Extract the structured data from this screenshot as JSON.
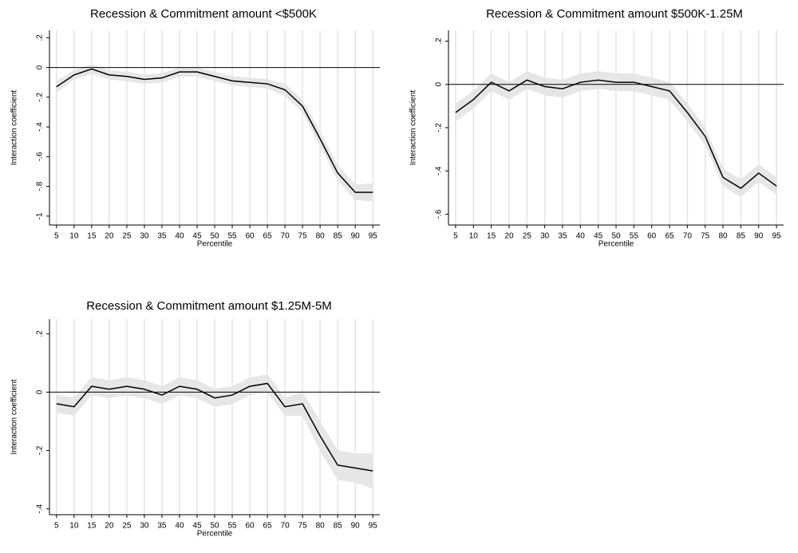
{
  "chart_data": [
    {
      "type": "line",
      "title": "Recession & Commitment amount <$500K",
      "x_label": "Percentile",
      "y_label": "Interaction coefficient",
      "x": [
        5,
        10,
        15,
        20,
        25,
        30,
        35,
        40,
        45,
        50,
        55,
        60,
        65,
        70,
        75,
        80,
        85,
        90,
        95
      ],
      "values": [
        -0.13,
        -0.05,
        -0.01,
        -0.05,
        -0.06,
        -0.08,
        -0.07,
        -0.03,
        -0.03,
        -0.06,
        -0.09,
        -0.1,
        -0.11,
        -0.15,
        -0.26,
        -0.48,
        -0.71,
        -0.84,
        -0.84
      ],
      "lower": [
        -0.17,
        -0.08,
        -0.04,
        -0.08,
        -0.09,
        -0.11,
        -0.1,
        -0.06,
        -0.06,
        -0.09,
        -0.12,
        -0.13,
        -0.14,
        -0.19,
        -0.3,
        -0.53,
        -0.76,
        -0.89,
        -0.9
      ],
      "upper": [
        -0.09,
        -0.02,
        0.02,
        -0.02,
        -0.03,
        -0.05,
        -0.04,
        0.0,
        0.0,
        -0.03,
        -0.06,
        -0.07,
        -0.08,
        -0.11,
        -0.22,
        -0.43,
        -0.66,
        -0.79,
        -0.78
      ],
      "color": "#000000",
      "band_color": "#e6e6e6",
      "reference_line": 0,
      "xlim": [
        3,
        97
      ],
      "xticks": [
        5,
        10,
        15,
        20,
        25,
        30,
        35,
        40,
        45,
        50,
        55,
        60,
        65,
        70,
        75,
        80,
        85,
        90,
        95
      ],
      "ylim": [
        -1.06,
        0.25
      ],
      "yticks": [
        {
          "value": 0.2,
          "label": ".2"
        },
        0,
        {
          "value": -0.2,
          "label": "-.2"
        },
        {
          "value": -0.4,
          "label": "-.4"
        },
        {
          "value": -0.6,
          "label": "-.6"
        },
        {
          "value": -0.8,
          "label": "-.8"
        },
        -1
      ],
      "grid": true
    },
    {
      "type": "line",
      "title": "Recession & Commitment amount $500K-1.25M",
      "x_label": "Percentile",
      "y_label": "Interaction coefficient",
      "x": [
        5,
        10,
        15,
        20,
        25,
        30,
        35,
        40,
        45,
        50,
        55,
        60,
        65,
        70,
        75,
        80,
        85,
        90,
        95
      ],
      "values": [
        -0.13,
        -0.07,
        0.01,
        -0.03,
        0.02,
        -0.01,
        -0.02,
        0.01,
        0.02,
        0.01,
        0.01,
        -0.01,
        -0.03,
        -0.13,
        -0.24,
        -0.43,
        -0.48,
        -0.41,
        -0.47
      ],
      "lower": [
        -0.17,
        -0.11,
        -0.03,
        -0.07,
        -0.02,
        -0.05,
        -0.06,
        -0.03,
        -0.02,
        -0.03,
        -0.03,
        -0.05,
        -0.07,
        -0.17,
        -0.28,
        -0.47,
        -0.52,
        -0.45,
        -0.51
      ],
      "upper": [
        -0.09,
        -0.03,
        0.05,
        0.01,
        0.06,
        0.03,
        0.02,
        0.05,
        0.06,
        0.05,
        0.05,
        0.03,
        0.01,
        -0.09,
        -0.2,
        -0.39,
        -0.44,
        -0.37,
        -0.43
      ],
      "color": "#000000",
      "band_color": "#e6e6e6",
      "reference_line": 0,
      "xlim": [
        3,
        97
      ],
      "xticks": [
        5,
        10,
        15,
        20,
        25,
        30,
        35,
        40,
        45,
        50,
        55,
        60,
        65,
        70,
        75,
        80,
        85,
        90,
        95
      ],
      "ylim": [
        -0.65,
        0.25
      ],
      "yticks": [
        {
          "value": 0.2,
          "label": ".2"
        },
        0,
        {
          "value": -0.2,
          "label": "-.2"
        },
        {
          "value": -0.4,
          "label": "-.4"
        },
        {
          "value": -0.6,
          "label": "-.6"
        }
      ],
      "grid": true
    },
    {
      "type": "line",
      "title": "Recession & Commitment amount $1.25M-5M",
      "x_label": "Percentile",
      "y_label": "Interaction coefficient",
      "x": [
        5,
        10,
        15,
        20,
        25,
        30,
        35,
        40,
        45,
        50,
        55,
        60,
        65,
        70,
        75,
        80,
        85,
        90,
        95
      ],
      "values": [
        -0.04,
        -0.05,
        0.02,
        0.01,
        0.02,
        0.01,
        -0.01,
        0.02,
        0.01,
        -0.02,
        -0.01,
        0.02,
        0.03,
        -0.05,
        -0.04,
        -0.15,
        -0.25,
        -0.26,
        -0.27
      ],
      "lower": [
        -0.07,
        -0.08,
        -0.01,
        -0.02,
        -0.01,
        -0.02,
        -0.04,
        -0.01,
        -0.02,
        -0.05,
        -0.04,
        -0.01,
        0.0,
        -0.08,
        -0.08,
        -0.2,
        -0.3,
        -0.31,
        -0.33
      ],
      "upper": [
        -0.01,
        -0.02,
        0.05,
        0.04,
        0.05,
        0.04,
        0.02,
        0.05,
        0.04,
        0.01,
        0.02,
        0.05,
        0.06,
        -0.02,
        0.0,
        -0.1,
        -0.2,
        -0.21,
        -0.21
      ],
      "color": "#000000",
      "band_color": "#e6e6e6",
      "reference_line": 0,
      "xlim": [
        3,
        97
      ],
      "xticks": [
        5,
        10,
        15,
        20,
        25,
        30,
        35,
        40,
        45,
        50,
        55,
        60,
        65,
        70,
        75,
        80,
        85,
        90,
        95
      ],
      "ylim": [
        -0.42,
        0.25
      ],
      "yticks": [
        {
          "value": 0.2,
          "label": ".2"
        },
        0,
        {
          "value": -0.2,
          "label": "-.2"
        },
        {
          "value": -0.4,
          "label": "-.4"
        }
      ],
      "grid": true
    }
  ]
}
